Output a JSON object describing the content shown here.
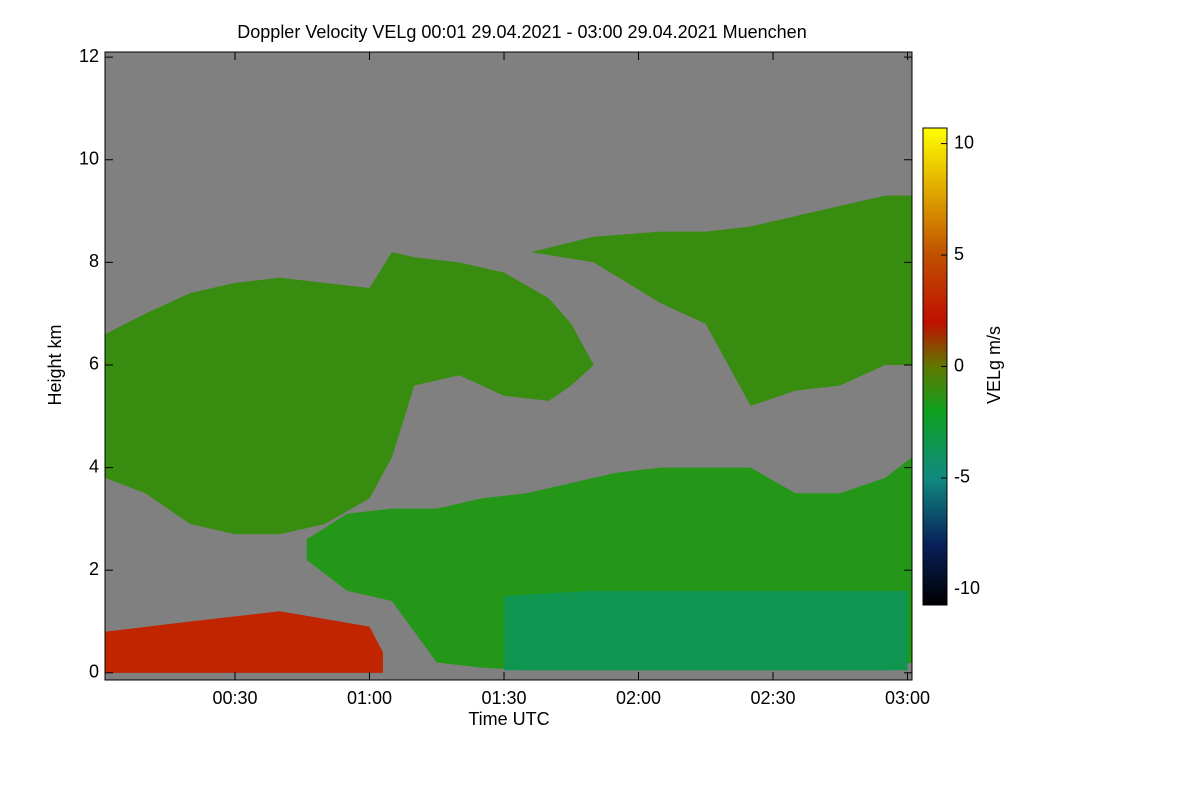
{
  "chart_data": {
    "type": "heatmap",
    "title": "Doppler Velocity VELg   00:01 29.04.2021 - 03:00 29.04.2021 Muenchen",
    "x_label": "Time UTC",
    "y_label": "Height km",
    "colorbar_label": "VELg m/s",
    "background_color": "#808080",
    "xlim": [
      1,
      181
    ],
    "xticks": [
      {
        "value": 30,
        "label": "00:30"
      },
      {
        "value": 60,
        "label": "01:00"
      },
      {
        "value": 90,
        "label": "01:30"
      },
      {
        "value": 120,
        "label": "02:00"
      },
      {
        "value": 150,
        "label": "02:30"
      },
      {
        "value": 180,
        "label": "03:00"
      }
    ],
    "ylim": [
      -0.14,
      12.1
    ],
    "yticks": [
      0,
      2,
      4,
      6,
      8,
      10,
      12
    ],
    "clim": [
      -10.7,
      10.7
    ],
    "cticks": [
      -10,
      -5,
      0,
      5,
      10
    ],
    "colormap": [
      {
        "value": -10.7,
        "color": "#000000"
      },
      {
        "value": -8,
        "color": "#08205a"
      },
      {
        "value": -5,
        "color": "#108a80"
      },
      {
        "value": -2,
        "color": "#10a020"
      },
      {
        "value": 0,
        "color": "#607800"
      },
      {
        "value": 2,
        "color": "#c01000"
      },
      {
        "value": 5,
        "color": "#c05000"
      },
      {
        "value": 10.7,
        "color": "#ffff00"
      }
    ],
    "layers": [
      {
        "velocity": -1,
        "time": [
          1,
          10,
          20,
          30,
          40,
          50,
          60,
          65,
          70,
          80,
          90,
          100,
          105,
          110
        ],
        "top": [
          6.6,
          7.0,
          7.4,
          7.6,
          7.7,
          7.6,
          7.5,
          8.2,
          8.1,
          8.0,
          7.8,
          7.3,
          6.8,
          6.0
        ],
        "base": [
          3.8,
          3.5,
          2.9,
          2.7,
          2.7,
          2.9,
          3.4,
          4.2,
          5.6,
          5.8,
          5.4,
          5.3,
          5.6,
          6.0
        ]
      },
      {
        "velocity": -1,
        "time": [
          96,
          110,
          125,
          135,
          145,
          155,
          165,
          175,
          181
        ],
        "top": [
          8.2,
          8.5,
          8.6,
          8.6,
          8.7,
          8.9,
          9.1,
          9.3,
          9.3
        ],
        "base": [
          8.2,
          8.0,
          7.2,
          6.8,
          5.2,
          5.5,
          5.6,
          6.0,
          6.0
        ]
      },
      {
        "velocity": -1.5,
        "time": [
          46,
          55,
          65,
          75,
          85,
          95,
          105,
          115,
          125,
          135,
          145,
          155,
          165,
          175,
          181
        ],
        "top": [
          2.6,
          3.1,
          3.2,
          3.2,
          3.4,
          3.5,
          3.7,
          3.9,
          4.0,
          4.0,
          4.0,
          3.5,
          3.5,
          3.8,
          4.2
        ],
        "base": [
          2.2,
          1.6,
          1.4,
          0.2,
          0.1,
          0.05,
          0.05,
          0.05,
          0.05,
          0.05,
          0.05,
          0.05,
          0.05,
          0.05,
          0.2
        ]
      },
      {
        "velocity": -3.5,
        "time": [
          90,
          100,
          110,
          120,
          130,
          140,
          150,
          160,
          170,
          180
        ],
        "top": [
          1.5,
          1.55,
          1.6,
          1.6,
          1.6,
          1.6,
          1.6,
          1.6,
          1.6,
          1.6
        ],
        "base": [
          0.05,
          0.05,
          0.05,
          0.05,
          0.05,
          0.05,
          0.05,
          0.05,
          0.05,
          0.05
        ]
      },
      {
        "velocity": 3,
        "time": [
          1,
          20,
          40,
          60,
          63
        ],
        "top": [
          0.8,
          1.0,
          1.2,
          0.9,
          0.4
        ],
        "base": [
          0,
          0,
          0,
          0,
          0
        ]
      }
    ]
  }
}
